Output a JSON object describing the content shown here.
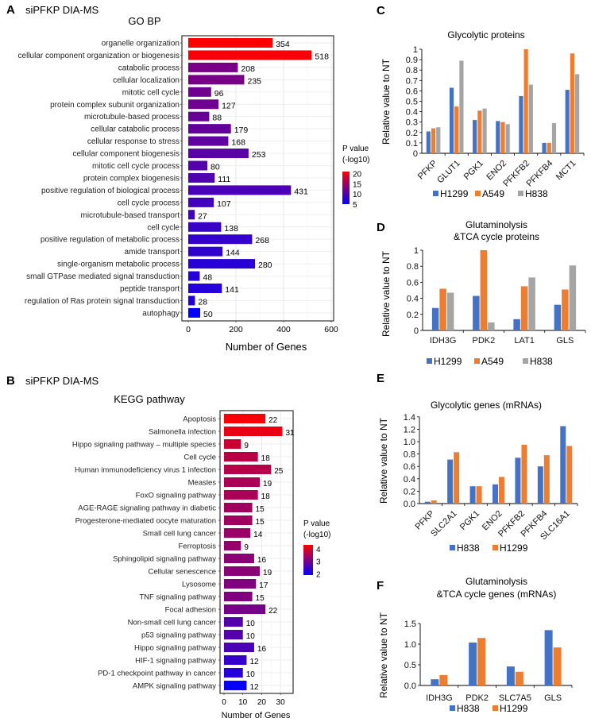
{
  "chart_data": [
    {
      "id": "A",
      "type": "bar",
      "orientation": "horizontal",
      "panel_label": "A",
      "subtitle": "siPFKP DIA-MS",
      "title": "GO BP",
      "xlabel": "Number of Genes",
      "xlim": [
        0,
        600
      ],
      "xticks": [
        0,
        200,
        400,
        600
      ],
      "grid": true,
      "legend": {
        "title": [
          "P value",
          "(-log10)"
        ],
        "ticks": [
          20,
          15,
          10,
          5
        ],
        "range": [
          5,
          21
        ],
        "low_color": "#0000ff",
        "high_color": "#ff0000",
        "placement": "right"
      },
      "categories": [
        "organelle organization",
        "cellular component organization or biogenesis",
        "catabolic process",
        "cellular localization",
        "mitotic cell cycle",
        "protein complex subunit organization",
        "microtubule-based process",
        "cellular catabolic process",
        "cellular response to stress",
        "cellular component biogenesis",
        "mitotic cell cycle process",
        "protein complex biogenesis",
        "positive regulation of biological process",
        "cell cycle process",
        "microtubule-based transport",
        "cell cycle",
        "positive regulation of metabolic process",
        "amide transport",
        "single-organism metabolic process",
        "small GTPase mediated signal transduction",
        "peptide transport",
        "regulation of Ras protein signal transduction",
        "autophagy"
      ],
      "values": [
        354,
        518,
        208,
        235,
        96,
        127,
        88,
        179,
        168,
        253,
        80,
        111,
        431,
        107,
        27,
        138,
        268,
        144,
        280,
        48,
        141,
        28,
        50
      ],
      "p_values": [
        21,
        20.5,
        12.5,
        12.5,
        12,
        12,
        11.5,
        11.2,
        11,
        10.6,
        10.3,
        10,
        9.6,
        9.2,
        9,
        8.6,
        8.2,
        8,
        7.6,
        7.5,
        7.4,
        7,
        5
      ]
    },
    {
      "id": "B",
      "type": "bar",
      "orientation": "horizontal",
      "panel_label": "B",
      "subtitle": "siPFKP DIA-MS",
      "title": "KEGG pathway",
      "xlabel": "Number of Genes",
      "xlim": [
        0,
        37
      ],
      "xticks": [
        0,
        10,
        20,
        30
      ],
      "grid": true,
      "legend": {
        "title": [
          "P value",
          "(-log10)"
        ],
        "ticks": [
          4,
          3,
          2
        ],
        "range": [
          1.9,
          4.3
        ],
        "low_color": "#0000ff",
        "high_color": "#ff0000",
        "placement": "right"
      },
      "categories": [
        "Apoptosis",
        "Salmonella infection",
        "Hippo signaling pathway – multiple species",
        "Cell cycle",
        "Human immunodeficiency virus 1 infection",
        "Measles",
        "FoxO signaling pathway",
        "AGE-RAGE signaling pathway in diabetic",
        "Progesterone-mediated oocyte maturation",
        "Small cell lung cancer",
        "Ferroptosis",
        "Sphingolipid signaling pathway",
        "Cellular senescence",
        "Lysosome",
        "TNF signaling pathway",
        "Focal adhesion",
        "Non-small cell lung cancer",
        "p53 signaling pathway",
        "Hippo signaling pathway",
        "HIF-1 signaling pathway",
        "PD-1 checkpoint pathway in cancer",
        "AMPK signaling pathway"
      ],
      "values": [
        22,
        31,
        9,
        18,
        25,
        19,
        18,
        15,
        15,
        14,
        9,
        16,
        19,
        17,
        15,
        22,
        10,
        10,
        16,
        12,
        10,
        12
      ],
      "p_values": [
        4.25,
        4.1,
        3.8,
        3.65,
        3.6,
        3.5,
        3.5,
        3.4,
        3.4,
        3.35,
        3.3,
        3.2,
        3.2,
        3.1,
        3.1,
        3.0,
        2.7,
        2.7,
        2.6,
        2.4,
        2.25,
        1.95
      ]
    },
    {
      "id": "C",
      "type": "bar",
      "panel_label": "C",
      "title": [
        "Glycolytic proteins"
      ],
      "ylabel": "Relative value  to NT",
      "ylim": [
        0,
        1
      ],
      "yticks": [
        "0",
        "0.1",
        "0.2",
        "0.3",
        "0.4",
        "0.5",
        "0.6",
        "0.7",
        "0.8",
        "0.9",
        "1"
      ],
      "rotated_labels": true,
      "categories": [
        "PFKP",
        "GLUT1",
        "PGK1",
        "ENO2",
        "PFKFB2",
        "PFKFB4",
        "MCT1"
      ],
      "series": [
        {
          "name": "H1299",
          "color": "#4472c4",
          "values": [
            0.21,
            0.63,
            0.32,
            0.31,
            0.55,
            0.1,
            0.61
          ]
        },
        {
          "name": "A549",
          "color": "#ed7d31",
          "values": [
            0.24,
            0.45,
            0.41,
            0.3,
            1.0,
            0.1,
            0.96
          ]
        },
        {
          "name": "H838",
          "color": "#a5a5a5",
          "values": [
            0.25,
            0.89,
            0.43,
            0.28,
            0.66,
            0.29,
            0.76
          ]
        }
      ],
      "legend_placement": "bottom"
    },
    {
      "id": "D",
      "type": "bar",
      "panel_label": "D",
      "title": [
        "Glutaminolysis",
        "&TCA cycle proteins"
      ],
      "ylabel": "Relative value  to NT",
      "ylim": [
        0,
        1
      ],
      "yticks": [
        "0",
        "0.2",
        "0.4",
        "0.6",
        "0.8",
        "1"
      ],
      "rotated_labels": false,
      "categories": [
        "IDH3G",
        "PDK2",
        "LAT1",
        "GLS"
      ],
      "series": [
        {
          "name": "H1299",
          "color": "#4472c4",
          "values": [
            0.28,
            0.43,
            0.14,
            0.32
          ]
        },
        {
          "name": "A549",
          "color": "#ed7d31",
          "values": [
            0.52,
            1.0,
            0.55,
            0.51
          ]
        },
        {
          "name": "H838",
          "color": "#a5a5a5",
          "values": [
            0.47,
            0.1,
            0.66,
            0.81
          ]
        }
      ],
      "legend_placement": "bottom"
    },
    {
      "id": "E",
      "type": "bar",
      "panel_label": "E",
      "title": [
        "Glycolytic genes (mRNAs)"
      ],
      "ylabel": "Relative value to NT",
      "ylim": [
        0,
        1.4
      ],
      "yticks": [
        "0.0",
        "0.2",
        "0.4",
        "0.6",
        "0.8",
        "1.0",
        "1.2",
        "1.4"
      ],
      "rotated_labels": true,
      "categories": [
        "PFKP",
        "SLC2A1",
        "PGK1",
        "ENO2",
        "PFKFB2",
        "PFKFB4",
        "SLC16A1"
      ],
      "series": [
        {
          "name": "H838",
          "color": "#4472c4",
          "values": [
            0.03,
            0.71,
            0.28,
            0.31,
            0.74,
            0.6,
            1.25
          ]
        },
        {
          "name": "H1299",
          "color": "#ed7d31",
          "values": [
            0.05,
            0.83,
            0.28,
            0.43,
            0.95,
            0.78,
            0.93
          ]
        }
      ],
      "legend_placement": "bottom"
    },
    {
      "id": "F",
      "type": "bar",
      "panel_label": "F",
      "title": [
        "Glutaminolysis",
        "&TCA cycle genes (mRNAs)"
      ],
      "ylabel": "Relative value to NT",
      "ylim": [
        0,
        1.5
      ],
      "yticks": [
        "0.0",
        "0.5",
        "1.0",
        "1.5"
      ],
      "rotated_labels": false,
      "categories": [
        "IDH3G",
        "PDK2",
        "SLC7A5",
        "GLS"
      ],
      "series": [
        {
          "name": "H838",
          "color": "#4472c4",
          "values": [
            0.15,
            1.04,
            0.46,
            1.34
          ]
        },
        {
          "name": "H1299",
          "color": "#ed7d31",
          "values": [
            0.25,
            1.15,
            0.33,
            0.92
          ]
        }
      ],
      "legend_placement": "bottom"
    }
  ]
}
